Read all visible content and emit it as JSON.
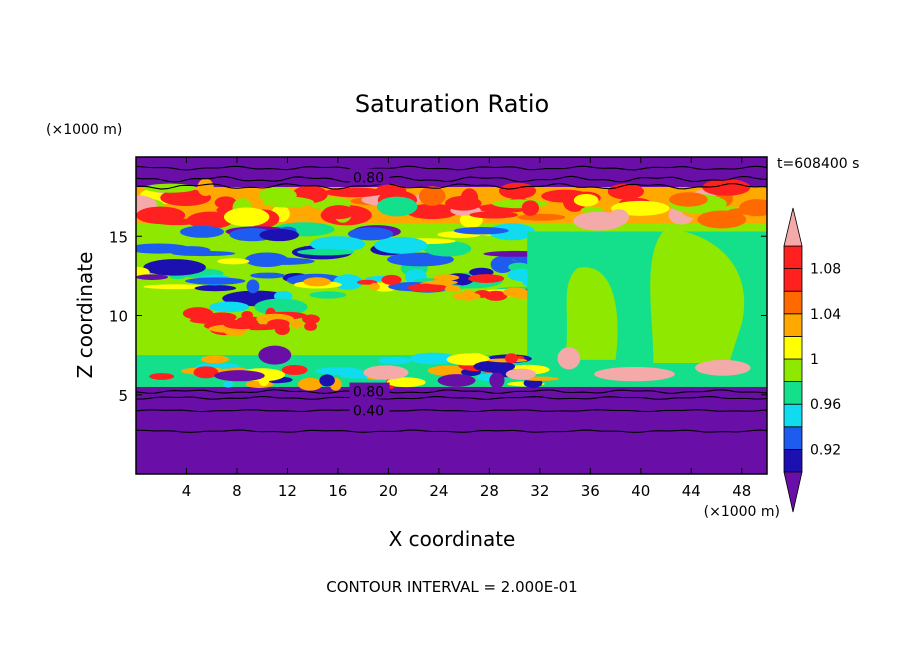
{
  "chart_data": {
    "type": "heatmap",
    "title": "Saturation Ratio",
    "xlabel": "X coordinate",
    "ylabel": "Z coordinate",
    "x_unit": "(×1000 m)",
    "y_unit": "(×1000 m)",
    "time_label": "t=608400 s",
    "footer": "CONTOUR INTERVAL = 2.000E-01",
    "xlim": [
      0,
      50
    ],
    "ylim": [
      0,
      20
    ],
    "x_ticks": [
      4,
      8,
      12,
      16,
      20,
      24,
      28,
      32,
      36,
      40,
      44,
      48
    ],
    "y_ticks": [
      5,
      10,
      15
    ],
    "contour_labels": [
      {
        "text": "0.80",
        "x": 17,
        "z": 18.7
      },
      {
        "text": "0.80",
        "x": 17,
        "z": 5.2
      },
      {
        "text": "0.40",
        "x": 17,
        "z": 4.0
      }
    ],
    "colorbar": {
      "levels": [
        0.9,
        0.92,
        0.94,
        0.96,
        0.98,
        1.0,
        1.02,
        1.04,
        1.06,
        1.08,
        1.1
      ],
      "colors": [
        "#6a0ea8",
        "#1c10b0",
        "#1e5cf0",
        "#10dcf0",
        "#14e08c",
        "#8ee800",
        "#ffff00",
        "#ffa800",
        "#ff6a00",
        "#ff2020",
        "#f4aaa8"
      ],
      "labels": [
        "0.92",
        "0.96",
        "1",
        "1.04",
        "1.08"
      ],
      "label_values": [
        0.92,
        0.96,
        1.0,
        1.04,
        1.08
      ]
    },
    "layers": [
      {
        "z_range": [
          0,
          5.5
        ],
        "value": "< 0.90"
      },
      {
        "z_range": [
          5.5,
          7.5
        ],
        "value": "0.98 – 1.10"
      },
      {
        "z_range": [
          7.5,
          18
        ],
        "value": "0.92 – 1.08"
      },
      {
        "z_range": [
          18,
          20
        ],
        "value": "< 0.90"
      }
    ]
  }
}
